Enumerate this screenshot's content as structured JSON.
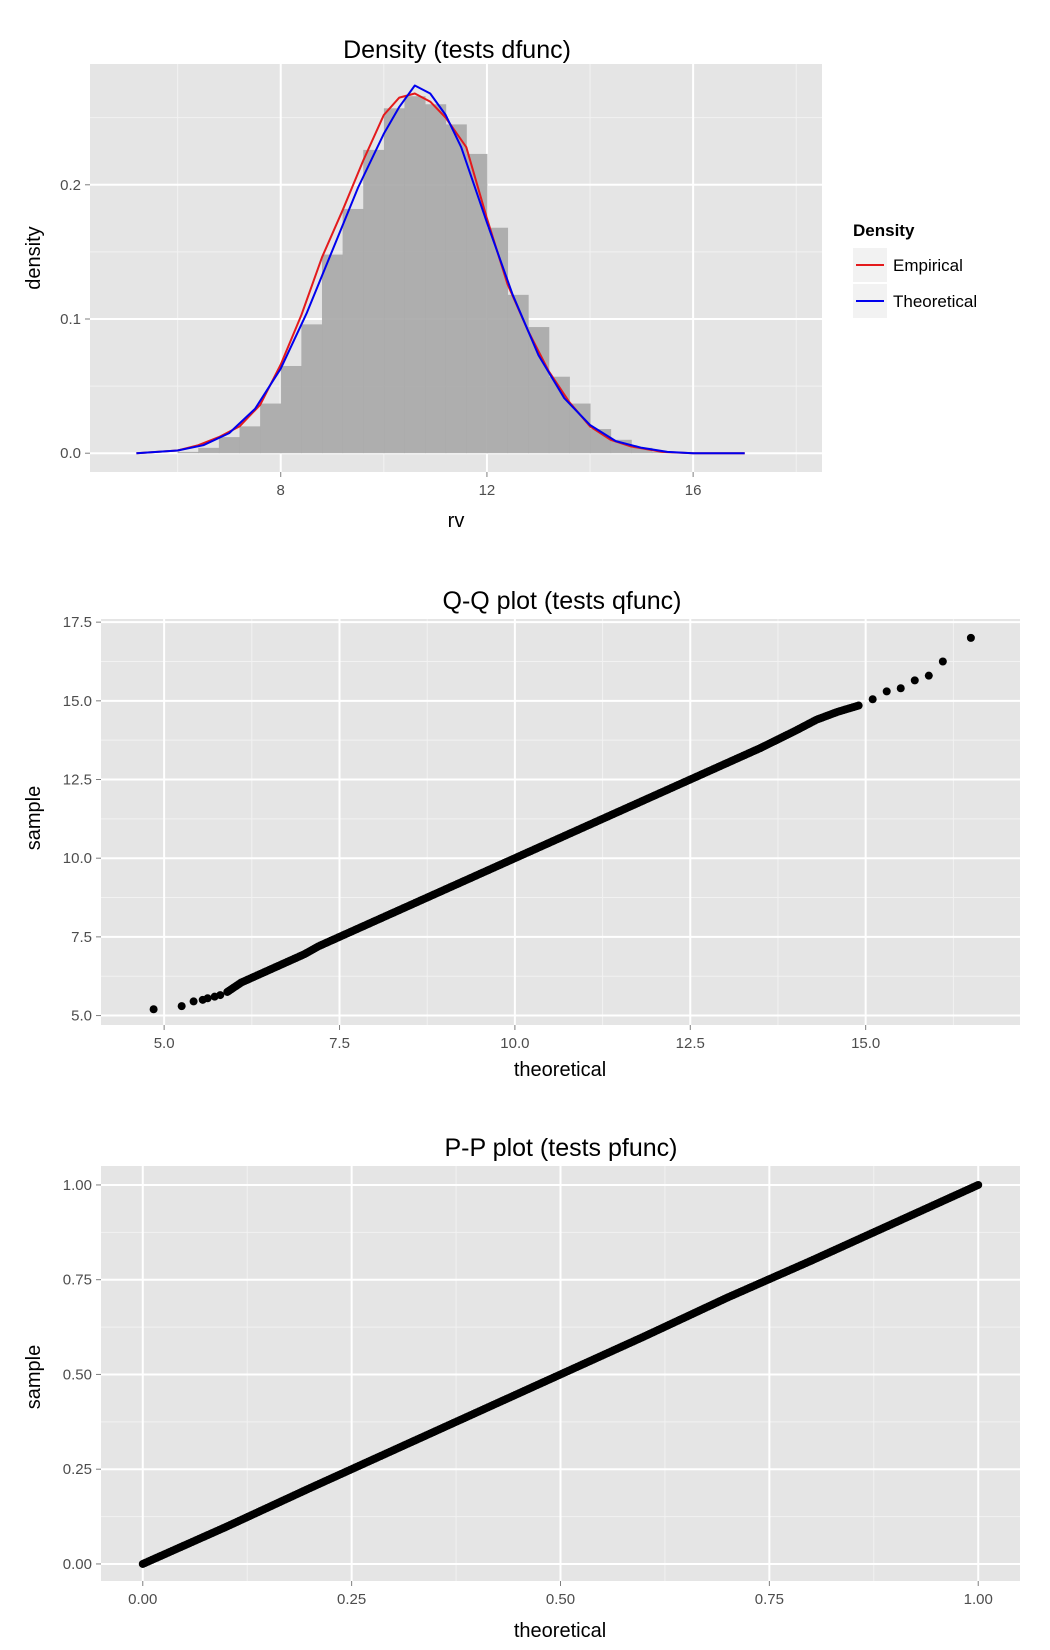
{
  "chart_data": [
    {
      "type": "area",
      "title": "Density (tests dfunc)",
      "xlabel": "rv",
      "ylabel": "density",
      "xlim": [
        4.3,
        18.5
      ],
      "ylim": [
        -0.014,
        0.29
      ],
      "xticks": [
        8,
        12,
        16
      ],
      "xtick_labels": [
        "8",
        "12",
        "16"
      ],
      "yticks": [
        0.0,
        0.1,
        0.2
      ],
      "ytick_labels": [
        "0.0",
        "0.1",
        "0.2"
      ],
      "legend": {
        "title": "Density",
        "position": "right",
        "items": [
          {
            "label": "Empirical",
            "color": "#e41a1c"
          },
          {
            "label": "Theoretical",
            "color": "#0000ee"
          }
        ]
      },
      "histogram": {
        "bin_width": 0.4,
        "bins": [
          {
            "x0": 5.2,
            "density": 0.0
          },
          {
            "x0": 5.6,
            "density": 0.0
          },
          {
            "x0": 6.0,
            "density": 0.001
          },
          {
            "x0": 6.4,
            "density": 0.004
          },
          {
            "x0": 6.8,
            "density": 0.012
          },
          {
            "x0": 7.2,
            "density": 0.02
          },
          {
            "x0": 7.6,
            "density": 0.037
          },
          {
            "x0": 8.0,
            "density": 0.065
          },
          {
            "x0": 8.4,
            "density": 0.096
          },
          {
            "x0": 8.8,
            "density": 0.148
          },
          {
            "x0": 9.2,
            "density": 0.182
          },
          {
            "x0": 9.6,
            "density": 0.226
          },
          {
            "x0": 10.0,
            "density": 0.257
          },
          {
            "x0": 10.4,
            "density": 0.266
          },
          {
            "x0": 10.8,
            "density": 0.26
          },
          {
            "x0": 11.2,
            "density": 0.245
          },
          {
            "x0": 11.6,
            "density": 0.223
          },
          {
            "x0": 12.0,
            "density": 0.168
          },
          {
            "x0": 12.4,
            "density": 0.118
          },
          {
            "x0": 12.8,
            "density": 0.094
          },
          {
            "x0": 13.2,
            "density": 0.057
          },
          {
            "x0": 13.6,
            "density": 0.037
          },
          {
            "x0": 14.0,
            "density": 0.018
          },
          {
            "x0": 14.4,
            "density": 0.01
          },
          {
            "x0": 14.8,
            "density": 0.004
          },
          {
            "x0": 15.2,
            "density": 0.001
          }
        ]
      },
      "series": [
        {
          "name": "Empirical",
          "color": "#e41a1c",
          "x": [
            5.2,
            6.0,
            6.4,
            6.8,
            7.2,
            7.6,
            8.0,
            8.4,
            8.8,
            9.2,
            9.6,
            10.0,
            10.3,
            10.6,
            10.9,
            11.2,
            11.6,
            12.0,
            12.4,
            12.8,
            13.2,
            13.6,
            14.0,
            14.4,
            14.8,
            15.4,
            16.0,
            17.0
          ],
          "y": [
            0.0,
            0.002,
            0.006,
            0.012,
            0.02,
            0.036,
            0.066,
            0.103,
            0.146,
            0.181,
            0.218,
            0.252,
            0.265,
            0.268,
            0.262,
            0.25,
            0.228,
            0.175,
            0.126,
            0.091,
            0.061,
            0.038,
            0.02,
            0.01,
            0.005,
            0.001,
            0.0,
            0.0
          ]
        },
        {
          "name": "Theoretical",
          "color": "#0000ee",
          "x": [
            5.2,
            6.0,
            6.5,
            7.0,
            7.5,
            8.0,
            8.5,
            9.0,
            9.5,
            10.0,
            10.3,
            10.6,
            10.9,
            11.2,
            11.5,
            12.0,
            12.5,
            13.0,
            13.5,
            14.0,
            14.5,
            15.0,
            15.5,
            16.0,
            17.0
          ],
          "y": [
            0.0,
            0.002,
            0.006,
            0.015,
            0.033,
            0.063,
            0.104,
            0.151,
            0.198,
            0.238,
            0.258,
            0.274,
            0.268,
            0.252,
            0.228,
            0.172,
            0.118,
            0.073,
            0.041,
            0.021,
            0.009,
            0.004,
            0.001,
            0.0,
            0.0
          ]
        }
      ]
    },
    {
      "type": "scatter",
      "title": "Q-Q plot (tests qfunc)",
      "xlabel": "theoretical",
      "ylabel": "sample",
      "xlim": [
        4.1,
        17.2
      ],
      "ylim": [
        4.7,
        17.6
      ],
      "xticks": [
        5.0,
        7.5,
        10.0,
        12.5,
        15.0
      ],
      "xtick_labels": [
        "5.0",
        "7.5",
        "10.0",
        "12.5",
        "15.0"
      ],
      "yticks": [
        5.0,
        7.5,
        10.0,
        12.5,
        15.0,
        17.5
      ],
      "ytick_labels": [
        "5.0",
        "7.5",
        "10.0",
        "12.5",
        "15.0",
        "17.5"
      ],
      "points": {
        "x": [
          4.85,
          5.25,
          5.42,
          5.55,
          5.62,
          5.72,
          5.8,
          5.9,
          6.0,
          6.1,
          6.2,
          6.3,
          6.45,
          6.6,
          6.8,
          7.0,
          7.2,
          7.5,
          8.0,
          8.5,
          9.0,
          9.5,
          10.0,
          10.5,
          11.0,
          11.5,
          12.0,
          12.5,
          13.0,
          13.5,
          14.0,
          14.3,
          14.6,
          14.9,
          15.1,
          15.3,
          15.5,
          15.7,
          15.9,
          16.1,
          16.5
        ],
        "y": [
          5.2,
          5.3,
          5.45,
          5.5,
          5.55,
          5.6,
          5.65,
          5.75,
          5.9,
          6.05,
          6.15,
          6.25,
          6.4,
          6.55,
          6.75,
          6.95,
          7.2,
          7.5,
          8.0,
          8.5,
          9.0,
          9.5,
          10.0,
          10.5,
          11.0,
          11.5,
          12.0,
          12.5,
          13.0,
          13.5,
          14.05,
          14.4,
          14.65,
          14.85,
          15.05,
          15.3,
          15.4,
          15.65,
          15.8,
          16.25,
          17.0
        ]
      }
    },
    {
      "type": "scatter",
      "title": "P-P plot (tests pfunc)",
      "xlabel": "theoretical",
      "ylabel": "sample",
      "xlim": [
        -0.05,
        1.05
      ],
      "ylim": [
        -0.045,
        1.05
      ],
      "xticks": [
        0.0,
        0.25,
        0.5,
        0.75,
        1.0
      ],
      "xtick_labels": [
        "0.00",
        "0.25",
        "0.50",
        "0.75",
        "1.00"
      ],
      "yticks": [
        0.0,
        0.25,
        0.5,
        0.75,
        1.0
      ],
      "ytick_labels": [
        "0.00",
        "0.25",
        "0.50",
        "0.75",
        "1.00"
      ],
      "points": {
        "x": [
          0.0,
          0.1,
          0.2,
          0.3,
          0.4,
          0.5,
          0.6,
          0.7,
          0.8,
          0.9,
          1.0
        ],
        "y": [
          0.0,
          0.098,
          0.2,
          0.3,
          0.4,
          0.5,
          0.6,
          0.703,
          0.8,
          0.9,
          1.0
        ]
      }
    }
  ]
}
